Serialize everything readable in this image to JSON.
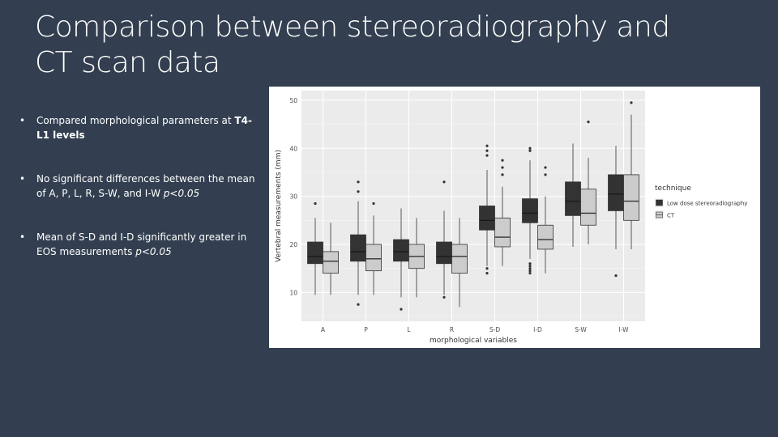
{
  "slide": {
    "title_line1": "Comparison between stereoradiography and",
    "title_line2": "CT scan data"
  },
  "bullets": [
    {
      "text": "Compared morphological parameters at ",
      "bold": "T4-L1 levels",
      "italic": ""
    },
    {
      "text": "No significant differences between the mean of A, P, L, R, S-W, and I-W ",
      "bold": "",
      "italic": "p<0.05"
    },
    {
      "text": "Mean of S-D and I-D significantly greater in EOS measurements ",
      "bold": "",
      "italic": "p<0.05"
    }
  ],
  "bullet_symbol": "•",
  "colors": {
    "background": "#333f50",
    "low_dose": "#333333",
    "ct": "#cccccc",
    "panel": "#ebebeb",
    "grid": "#ffffff",
    "text": "#ffffff"
  },
  "chart_data": {
    "type": "boxplot",
    "title": "",
    "xlabel": "morphological variables",
    "ylabel": "Vertebral measurements (mm)",
    "ylim": [
      4,
      52
    ],
    "yticks": [
      10,
      20,
      30,
      40,
      50
    ],
    "grid": true,
    "legend_title": "technique",
    "legend_position": "right",
    "categories": [
      "A",
      "P",
      "L",
      "R",
      "S-D",
      "I-D",
      "S-W",
      "I-W"
    ],
    "series": [
      {
        "name": "Low dose stereoradiography",
        "color": "#333333",
        "boxes": [
          {
            "whisker_low": 9.5,
            "q1": 16.0,
            "median": 17.5,
            "q3": 20.5,
            "whisker_high": 25.5,
            "outliers": [
              28.5
            ]
          },
          {
            "whisker_low": 9.5,
            "q1": 16.5,
            "median": 18.5,
            "q3": 22.0,
            "whisker_high": 29.0,
            "outliers": [
              7.5,
              31.0,
              33.0
            ]
          },
          {
            "whisker_low": 9.0,
            "q1": 16.5,
            "median": 18.5,
            "q3": 21.0,
            "whisker_high": 27.5,
            "outliers": [
              6.5
            ]
          },
          {
            "whisker_low": 9.5,
            "q1": 16.0,
            "median": 17.5,
            "q3": 20.5,
            "whisker_high": 27.0,
            "outliers": [
              9.0,
              33.0
            ]
          },
          {
            "whisker_low": 15.5,
            "q1": 23.0,
            "median": 25.0,
            "q3": 28.0,
            "whisker_high": 35.5,
            "outliers": [
              14.0,
              15.0,
              38.5,
              39.5,
              40.5
            ]
          },
          {
            "whisker_low": 17.0,
            "q1": 24.5,
            "median": 26.5,
            "q3": 29.5,
            "whisker_high": 37.5,
            "outliers": [
              14.0,
              14.5,
              15.0,
              15.5,
              16.0,
              39.5,
              40.0
            ]
          },
          {
            "whisker_low": 19.5,
            "q1": 26.0,
            "median": 29.0,
            "q3": 33.0,
            "whisker_high": 41.0,
            "outliers": []
          },
          {
            "whisker_low": 19.0,
            "q1": 27.0,
            "median": 30.5,
            "q3": 34.5,
            "whisker_high": 40.5,
            "outliers": [
              13.5
            ]
          }
        ]
      },
      {
        "name": "CT",
        "color": "#cccccc",
        "boxes": [
          {
            "whisker_low": 9.5,
            "q1": 14.0,
            "median": 16.5,
            "q3": 18.5,
            "whisker_high": 24.5,
            "outliers": []
          },
          {
            "whisker_low": 9.5,
            "q1": 14.5,
            "median": 17.0,
            "q3": 20.0,
            "whisker_high": 26.0,
            "outliers": [
              28.5
            ]
          },
          {
            "whisker_low": 9.0,
            "q1": 15.0,
            "median": 17.5,
            "q3": 20.0,
            "whisker_high": 25.5,
            "outliers": []
          },
          {
            "whisker_low": 7.0,
            "q1": 14.0,
            "median": 17.5,
            "q3": 20.0,
            "whisker_high": 25.5,
            "outliers": []
          },
          {
            "whisker_low": 15.5,
            "q1": 19.5,
            "median": 21.5,
            "q3": 25.5,
            "whisker_high": 32.0,
            "outliers": [
              34.5,
              36.0,
              37.5
            ]
          },
          {
            "whisker_low": 14.0,
            "q1": 19.0,
            "median": 21.0,
            "q3": 24.0,
            "whisker_high": 30.0,
            "outliers": [
              34.5,
              36.0
            ]
          },
          {
            "whisker_low": 20.0,
            "q1": 24.0,
            "median": 26.5,
            "q3": 31.5,
            "whisker_high": 38.0,
            "outliers": [
              45.5
            ]
          },
          {
            "whisker_low": 19.0,
            "q1": 25.0,
            "median": 29.0,
            "q3": 34.5,
            "whisker_high": 47.0,
            "outliers": [
              49.5
            ]
          }
        ]
      }
    ]
  }
}
